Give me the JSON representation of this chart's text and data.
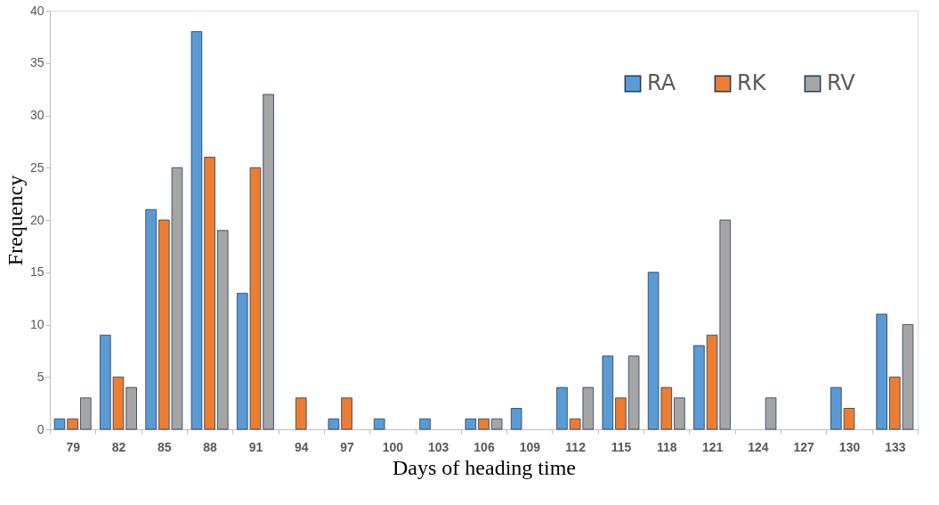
{
  "chart_data": {
    "type": "bar",
    "xlabel": "Days of heading time",
    "ylabel": "Frequency",
    "categories": [
      "79",
      "82",
      "85",
      "88",
      "91",
      "94",
      "97",
      "100",
      "103",
      "106",
      "109",
      "112",
      "115",
      "118",
      "121",
      "124",
      "127",
      "130",
      "133"
    ],
    "series": [
      {
        "name": "RA",
        "color": "#5b9bd5",
        "values": [
          1,
          9,
          21,
          38,
          13,
          0,
          1,
          1,
          1,
          1,
          2,
          4,
          7,
          15,
          8,
          0,
          0,
          4,
          11
        ]
      },
      {
        "name": "RK",
        "color": "#ed7d31",
        "values": [
          1,
          5,
          20,
          26,
          25,
          3,
          3,
          0,
          0,
          1,
          0,
          1,
          3,
          4,
          9,
          0,
          0,
          2,
          5
        ]
      },
      {
        "name": "RV",
        "color": "#a5a5a5",
        "values": [
          3,
          4,
          25,
          19,
          32,
          0,
          0,
          0,
          0,
          1,
          0,
          4,
          7,
          3,
          20,
          3,
          0,
          0,
          10
        ]
      }
    ],
    "ylim": [
      0,
      40
    ],
    "yticks": [
      0,
      5,
      10,
      15,
      20,
      25,
      30,
      35,
      40
    ],
    "grid": false,
    "legend": "top right"
  }
}
